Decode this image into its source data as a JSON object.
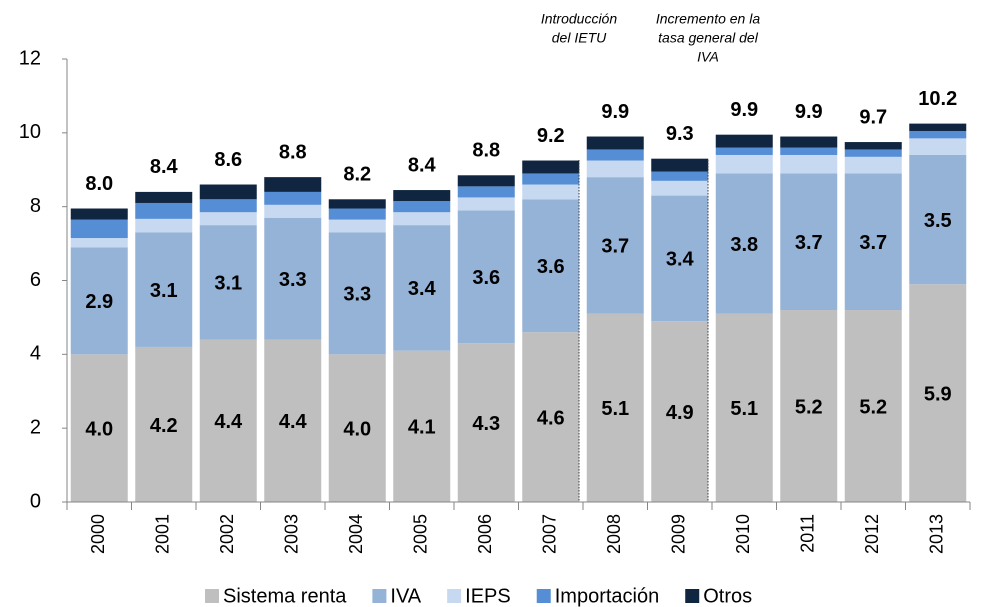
{
  "chart_data": {
    "type": "stacked_bar",
    "categories": [
      "2000",
      "2001",
      "2002",
      "2003",
      "2004",
      "2005",
      "2006",
      "2007",
      "2008",
      "2009",
      "2010",
      "2011",
      "2012",
      "2013"
    ],
    "series": [
      {
        "name": "Sistema renta",
        "color": "#bfbfbf",
        "values": [
          4.0,
          4.2,
          4.4,
          4.4,
          4.0,
          4.1,
          4.3,
          4.6,
          5.1,
          4.9,
          5.1,
          5.2,
          5.2,
          5.9
        ],
        "value_labels": [
          "4.0",
          "4.2",
          "4.4",
          "4.4",
          "4.0",
          "4.1",
          "4.3",
          "4.6",
          "5.1",
          "4.9",
          "5.1",
          "5.2",
          "5.2",
          "5.9"
        ]
      },
      {
        "name": "IVA",
        "color": "#95b3d7",
        "values": [
          2.9,
          3.1,
          3.1,
          3.3,
          3.3,
          3.4,
          3.6,
          3.6,
          3.7,
          3.4,
          3.8,
          3.7,
          3.7,
          3.5
        ]
      },
      {
        "name": "IEPS",
        "color": "#c6d9f1",
        "values": [
          0.25,
          0.37,
          0.35,
          0.35,
          0.35,
          0.35,
          0.35,
          0.4,
          0.45,
          0.4,
          0.5,
          0.5,
          0.45,
          0.45
        ]
      },
      {
        "name": "Importación",
        "color": "#558ed5",
        "values": [
          0.5,
          0.43,
          0.35,
          0.35,
          0.3,
          0.3,
          0.3,
          0.3,
          0.3,
          0.25,
          0.2,
          0.2,
          0.2,
          0.2
        ]
      },
      {
        "name": "Otros",
        "color": "#10253f",
        "values": [
          0.3,
          0.3,
          0.4,
          0.4,
          0.25,
          0.3,
          0.3,
          0.35,
          0.35,
          0.35,
          0.35,
          0.3,
          0.2,
          0.2
        ]
      }
    ],
    "totals": [
      8.0,
      8.4,
      8.6,
      8.8,
      8.2,
      8.4,
      8.8,
      9.2,
      9.9,
      9.3,
      9.9,
      9.9,
      9.7,
      10.2
    ],
    "total_labels": [
      "8.0",
      "8.4",
      "8.6",
      "8.8",
      "8.2",
      "8.4",
      "8.8",
      "9.2",
      "9.9",
      "9.3",
      "9.9",
      "9.9",
      "9.7",
      "10.2"
    ],
    "annotations": [
      {
        "lines": [
          "Introducción",
          "del IETU"
        ]
      },
      {
        "lines": [
          "Incremento en la",
          "tasa general del",
          "IVA"
        ]
      }
    ],
    "ylim": [
      0,
      12
    ],
    "yticks": [
      0,
      2,
      4,
      6,
      8,
      10,
      12
    ],
    "legend": "bottom"
  }
}
